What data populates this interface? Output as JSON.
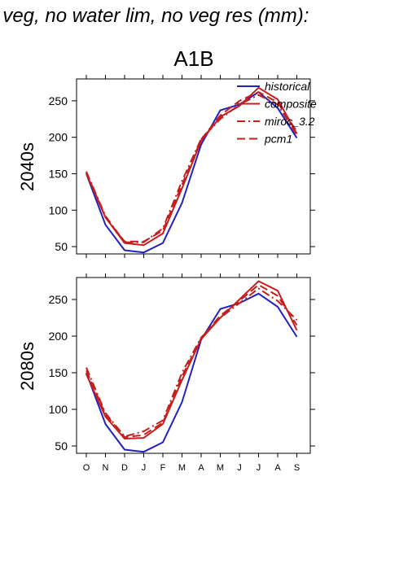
{
  "header": {
    "title": "f veg, no water lim, no veg res (mm):",
    "scenario": "A1B"
  },
  "colors": {
    "historical": "#2222bb",
    "composite": "#c41e1e",
    "miroc_3_2": "#c41e1e",
    "pcm1": "#c41e1e"
  },
  "chart_data": [
    {
      "type": "line",
      "row_label": "2040s",
      "x": [
        "O",
        "N",
        "D",
        "J",
        "F",
        "M",
        "A",
        "M",
        "J",
        "J",
        "A",
        "S"
      ],
      "yticks": [
        50,
        100,
        150,
        200,
        250
      ],
      "ylim": [
        40,
        280
      ],
      "legend": {
        "position": "top-right",
        "entries": [
          "historical",
          "composite",
          "miroc_3.2",
          "pcm1"
        ]
      },
      "series": [
        {
          "name": "historical",
          "values": [
            150,
            80,
            45,
            42,
            55,
            110,
            190,
            237,
            245,
            262,
            240,
            199
          ]
        },
        {
          "name": "composite",
          "values": [
            150,
            90,
            55,
            52,
            68,
            130,
            195,
            228,
            243,
            268,
            252,
            205
          ]
        },
        {
          "name": "miroc_3.2",
          "values": [
            153,
            92,
            56,
            56,
            75,
            140,
            198,
            225,
            245,
            258,
            245,
            203
          ]
        },
        {
          "name": "pcm1",
          "values": [
            152,
            90,
            57,
            57,
            72,
            135,
            197,
            230,
            250,
            262,
            248,
            208
          ]
        }
      ]
    },
    {
      "type": "line",
      "row_label": "2080s",
      "x": [
        "O",
        "N",
        "D",
        "J",
        "F",
        "M",
        "A",
        "M",
        "J",
        "J",
        "A",
        "S"
      ],
      "yticks": [
        50,
        100,
        150,
        200,
        250
      ],
      "ylim": [
        40,
        280
      ],
      "series": [
        {
          "name": "historical",
          "values": [
            150,
            80,
            45,
            42,
            55,
            110,
            195,
            237,
            245,
            258,
            240,
            199
          ]
        },
        {
          "name": "composite",
          "values": [
            148,
            90,
            60,
            61,
            80,
            140,
            196,
            225,
            250,
            275,
            262,
            208
          ]
        },
        {
          "name": "miroc_3.2",
          "values": [
            157,
            95,
            63,
            70,
            85,
            150,
            198,
            225,
            245,
            265,
            248,
            222
          ]
        },
        {
          "name": "pcm1",
          "values": [
            153,
            93,
            62,
            65,
            82,
            145,
            197,
            228,
            248,
            270,
            255,
            215
          ]
        }
      ]
    }
  ]
}
